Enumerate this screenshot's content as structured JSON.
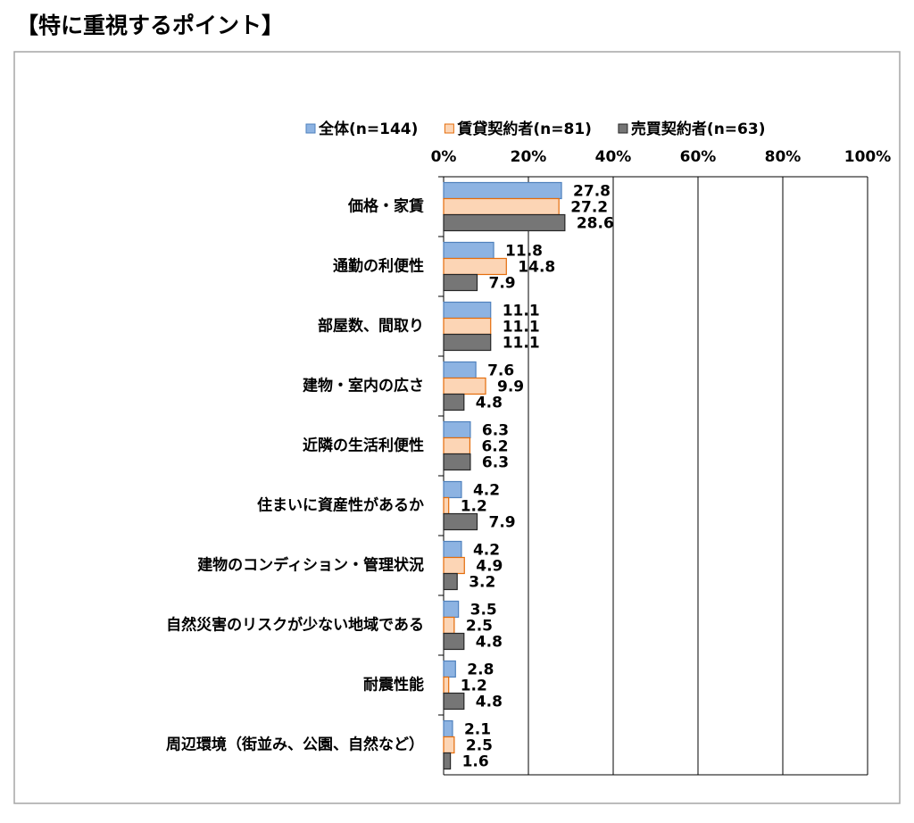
{
  "chart_data": {
    "type": "bar",
    "orientation": "horizontal",
    "title": "【特に重視するポイント】",
    "categories": [
      "価格・家賃",
      "通勤の利便性",
      "部屋数、間取り",
      "建物・室内の広さ",
      "近隣の生活利便性",
      "住まいに資産性があるか",
      "建物のコンディション・管理状況",
      "自然災害のリスクが少ない地域である",
      "耐震性能",
      "周辺環境（街並み、公園、自然など）"
    ],
    "series": [
      {
        "name": "全体(n=144)",
        "color": "#8db3e2",
        "border": "#4f81bd",
        "values": [
          27.8,
          11.8,
          11.1,
          7.6,
          6.3,
          4.2,
          4.2,
          3.5,
          2.8,
          2.1
        ]
      },
      {
        "name": "賃貸契約者(n=81)",
        "color": "#fcd5b5",
        "border": "#e46c0a",
        "values": [
          27.2,
          14.8,
          11.1,
          9.9,
          6.2,
          1.2,
          4.9,
          2.5,
          1.2,
          2.5
        ]
      },
      {
        "name": "売買契約者(n=63)",
        "color": "#767676",
        "border": "#262626",
        "values": [
          28.6,
          7.9,
          11.1,
          4.8,
          6.3,
          7.9,
          3.2,
          4.8,
          4.8,
          1.6
        ]
      }
    ],
    "xlim": [
      0,
      100
    ],
    "xticks": [
      {
        "value": 0,
        "label": "0%"
      },
      {
        "value": 20,
        "label": "20%"
      },
      {
        "value": 40,
        "label": "40%"
      },
      {
        "value": 60,
        "label": "60%"
      },
      {
        "value": 80,
        "label": "80%"
      },
      {
        "value": 100,
        "label": "100%"
      }
    ],
    "grid": true,
    "legend": "top"
  }
}
